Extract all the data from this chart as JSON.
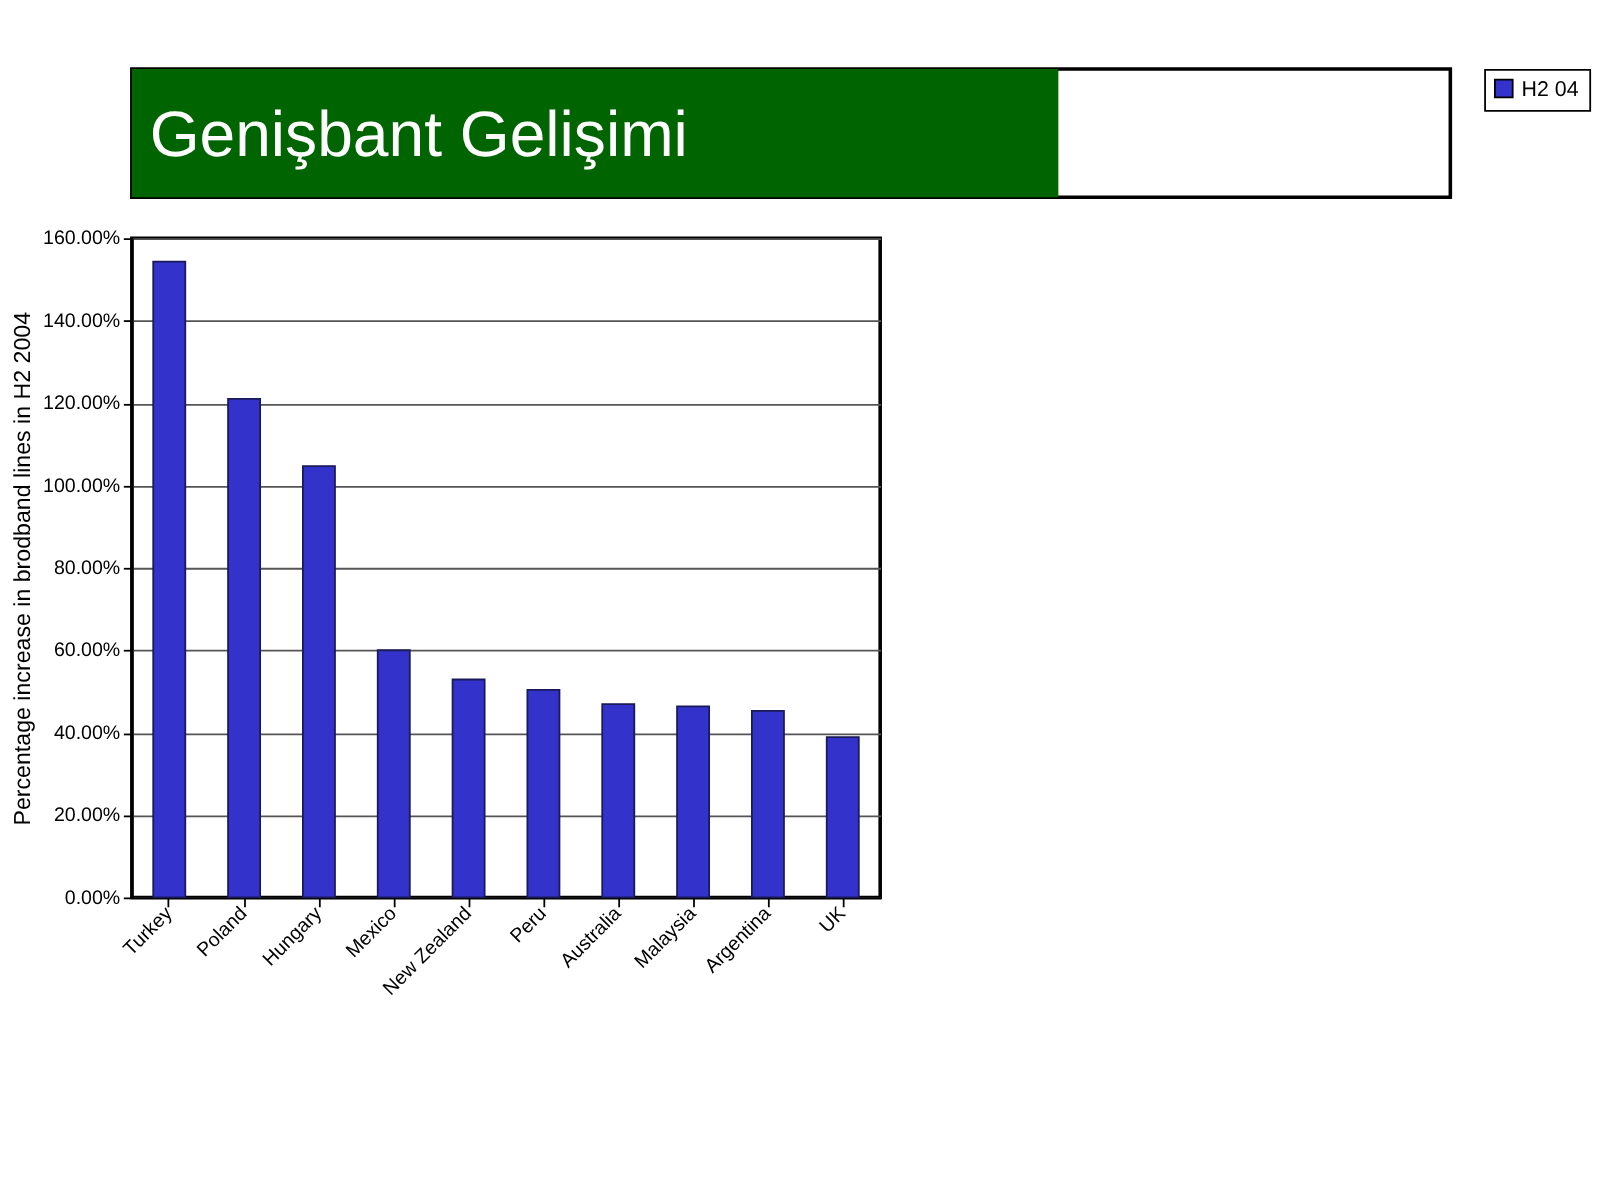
{
  "chart_data": {
    "type": "bar",
    "title": "Genişbant Gelişimi",
    "ylabel": "Percentage increase in brodband lines in H2 2004",
    "categories": [
      "Turkey",
      "Poland",
      "Hungary",
      "Mexico",
      "New Zealand",
      "Peru",
      "Australia",
      "Malaysia",
      "Argentina",
      "UK"
    ],
    "series": [
      {
        "name": "H2 04",
        "color": "#3333cc",
        "values": [
          154.3,
          121,
          104.7,
          60,
          52.9,
          50.4,
          46.9,
          46.4,
          45.3,
          38.9
        ]
      }
    ],
    "ylim": [
      0,
      160
    ],
    "yticks": [
      {
        "value": 0,
        "label": "0.00%"
      },
      {
        "value": 20,
        "label": "20.00%"
      },
      {
        "value": 40,
        "label": "40.00%"
      },
      {
        "value": 60,
        "label": "60.00%"
      },
      {
        "value": 80,
        "label": "80.00%"
      },
      {
        "value": 100,
        "label": "100.00%"
      },
      {
        "value": 120,
        "label": "120.00%"
      },
      {
        "value": 140,
        "label": "140.00%"
      },
      {
        "value": 160,
        "label": "160.00%"
      }
    ],
    "grid": "y",
    "legend": "right"
  }
}
